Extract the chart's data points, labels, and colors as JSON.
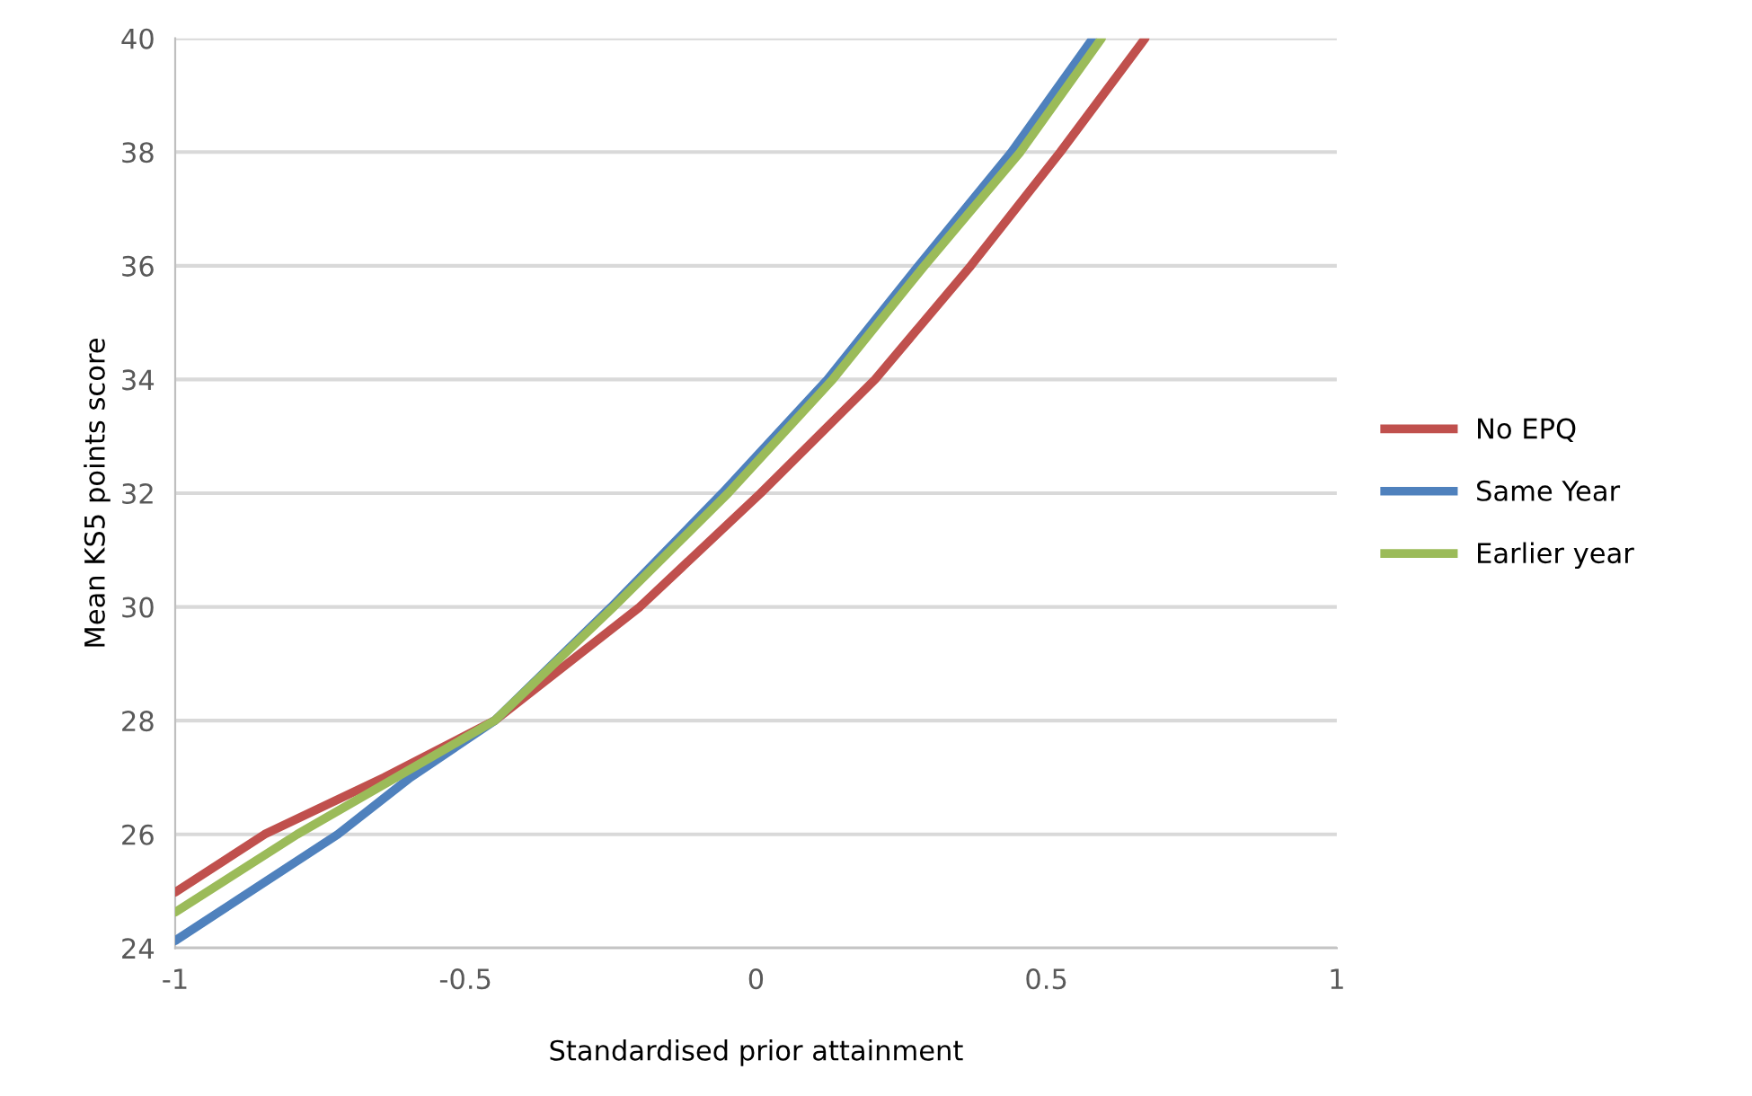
{
  "chart_data": {
    "type": "line",
    "xlabel": "Standardised prior attainment",
    "ylabel": "Mean KS5 points score",
    "xlim": [
      -1,
      1
    ],
    "xticks": [
      -1,
      -0.5,
      0,
      0.5,
      1
    ],
    "ylim": [
      24,
      40
    ],
    "yticks": [
      24,
      26,
      28,
      30,
      32,
      34,
      36,
      38,
      40
    ],
    "grid": "y",
    "legend": "right",
    "marker": "none",
    "line_style": "solid",
    "series": [
      {
        "name": "No EPQ",
        "color": "#c0504d",
        "x": [
          -1,
          -0.846,
          -0.64,
          -0.45,
          -0.2,
          0.008,
          0.205,
          0.37,
          0.524,
          0.67
        ],
        "values": [
          24.98,
          26,
          27,
          28,
          30,
          32,
          34,
          36,
          38,
          40
        ]
      },
      {
        "name": "Same Year",
        "color": "#4f81bd",
        "x": [
          -1,
          -0.72,
          -0.595,
          -0.45,
          -0.249,
          -0.058,
          0.123,
          0.28,
          0.44,
          0.58
        ],
        "values": [
          24.13,
          26,
          27,
          28,
          30,
          32,
          34,
          36,
          38,
          40
        ]
      },
      {
        "name": "Earlier year",
        "color": "#9bbb59",
        "x": [
          -1,
          -0.79,
          -0.62,
          -0.45,
          -0.245,
          -0.048,
          0.132,
          0.29,
          0.455,
          0.595
        ],
        "values": [
          24.63,
          26,
          27,
          28,
          30,
          32,
          34,
          36,
          38,
          40
        ]
      }
    ]
  }
}
